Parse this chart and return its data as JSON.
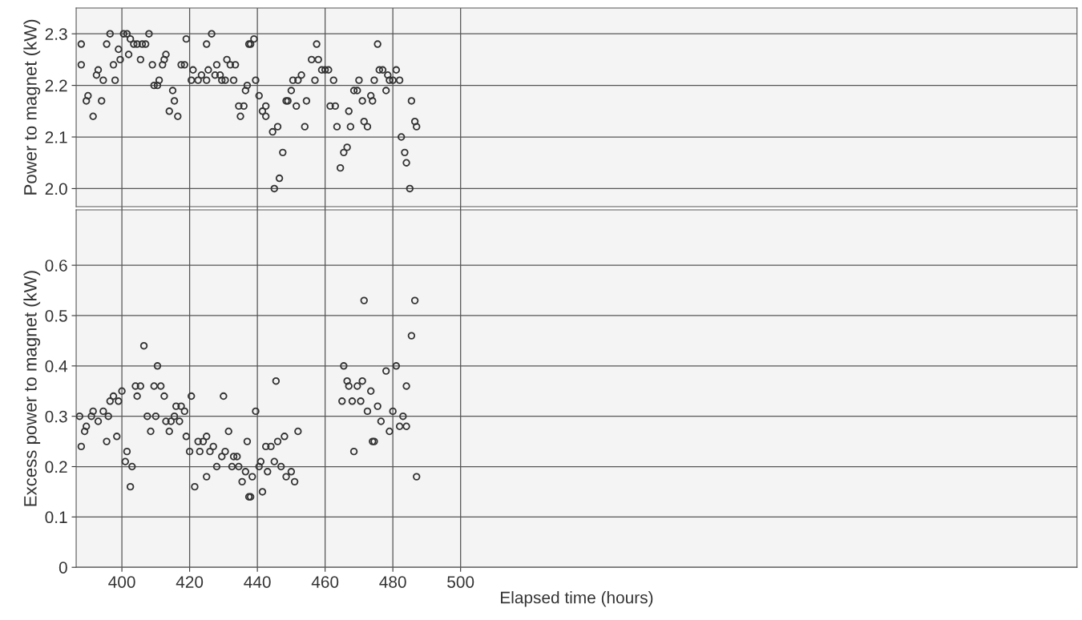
{
  "chart_data": [
    {
      "type": "scatter",
      "ylabel": "Power to magnet (kW)",
      "xlim": [
        386.5,
        682
      ],
      "xticks": [
        400,
        420,
        440,
        460,
        480,
        500
      ],
      "ylim": [
        1.965,
        2.35
      ],
      "yticks": [
        {
          "value": 2.0,
          "label": "2.0"
        },
        2.1,
        2.2,
        2.3
      ],
      "tick_labels": "y",
      "grid": true,
      "marker": "circle",
      "color": "#333333",
      "x": [
        388,
        388,
        390,
        389.5,
        391.5,
        393,
        392.5,
        394.5,
        394,
        395.5,
        396.5,
        397.5,
        398,
        399,
        399.5,
        400.5,
        401.5,
        402,
        402.5,
        403.5,
        404.5,
        406,
        407,
        405.5,
        408,
        409,
        409.5,
        410.5,
        411,
        412,
        412.5,
        413,
        415,
        415.5,
        414,
        416.5,
        417.5,
        418.5,
        419,
        421,
        420.5,
        422.5,
        423.5,
        425,
        425,
        425.5,
        426.5,
        427.5,
        428,
        429,
        429.5,
        430.5,
        431,
        432,
        433,
        433.5,
        434.5,
        436,
        435,
        436.5,
        437,
        437.5,
        439,
        438,
        439.5,
        440.5,
        442.5,
        441.5,
        442.5,
        446,
        444.5,
        447.5,
        446.5,
        445,
        448.5,
        449,
        450,
        450.5,
        451.5,
        452,
        453,
        454,
        454.5,
        456,
        457,
        457.5,
        458,
        459,
        460,
        461,
        462.5,
        461.5,
        463,
        463.5,
        465.5,
        466.5,
        464.5,
        467,
        467.5,
        468.5,
        469.5,
        470,
        471,
        471.5,
        472.5,
        473.5,
        474,
        474.5,
        475.5,
        476,
        477,
        478,
        478.5,
        479,
        480,
        481,
        482,
        482.5,
        483.5,
        484,
        485,
        485.5,
        486.5,
        487
      ],
      "values": [
        2.28,
        2.24,
        2.18,
        2.17,
        2.14,
        2.23,
        2.22,
        2.21,
        2.17,
        2.28,
        2.3,
        2.24,
        2.21,
        2.27,
        2.25,
        2.3,
        2.3,
        2.26,
        2.29,
        2.28,
        2.28,
        2.28,
        2.28,
        2.25,
        2.3,
        2.24,
        2.2,
        2.2,
        2.21,
        2.24,
        2.25,
        2.26,
        2.19,
        2.17,
        2.15,
        2.14,
        2.24,
        2.24,
        2.29,
        2.23,
        2.21,
        2.21,
        2.22,
        2.21,
        2.28,
        2.23,
        2.3,
        2.22,
        2.24,
        2.22,
        2.21,
        2.21,
        2.25,
        2.24,
        2.21,
        2.24,
        2.16,
        2.16,
        2.14,
        2.19,
        2.2,
        2.28,
        2.29,
        2.28,
        2.21,
        2.18,
        2.16,
        2.15,
        2.14,
        2.12,
        2.11,
        2.07,
        2.02,
        2.0,
        2.17,
        2.17,
        2.19,
        2.21,
        2.16,
        2.21,
        2.22,
        2.12,
        2.17,
        2.25,
        2.21,
        2.28,
        2.25,
        2.23,
        2.23,
        2.23,
        2.21,
        2.16,
        2.16,
        2.12,
        2.07,
        2.08,
        2.04,
        2.15,
        2.12,
        2.19,
        2.19,
        2.21,
        2.17,
        2.13,
        2.12,
        2.18,
        2.17,
        2.21,
        2.28,
        2.23,
        2.23,
        2.19,
        2.22,
        2.21,
        2.21,
        2.23,
        2.21,
        2.1,
        2.07,
        2.05,
        2.0,
        2.17,
        2.13,
        2.12
      ]
    },
    {
      "type": "scatter",
      "ylabel": "Excess power to magnet (kW)",
      "xlabel": "Elapsed time (hours)",
      "xlim": [
        386.5,
        682
      ],
      "xticks": [
        400,
        420,
        440,
        460,
        480,
        500
      ],
      "ylim": [
        0,
        0.71
      ],
      "yticks": [
        0,
        0.1,
        0.2,
        0.3,
        0.4,
        0.5,
        0.6
      ],
      "grid": true,
      "marker": "circle",
      "color": "#333333",
      "x": [
        406.5,
        410.5,
        387.5,
        388,
        389.5,
        389,
        391,
        391.5,
        393,
        394.5,
        396,
        395.5,
        396.5,
        397.5,
        399,
        398.5,
        400,
        401.5,
        401,
        403,
        402.5,
        404,
        405.5,
        404.5,
        407.5,
        408.5,
        409.5,
        410,
        411.5,
        412.5,
        413,
        414,
        414.5,
        415.5,
        416,
        417,
        417.5,
        418.5,
        419,
        420,
        420.5,
        421.5,
        422.5,
        423,
        424,
        425,
        426,
        427,
        425,
        428,
        429.5,
        430,
        430.5,
        431.5,
        432.5,
        433,
        434,
        434.5,
        436.5,
        435.5,
        437,
        437.5,
        471.5,
        486.5,
        485.5,
        465.5,
        478,
        481,
        445.5,
        466.5,
        471,
        467,
        469.5,
        473.5,
        484,
        465,
        468,
        470.5,
        475.5,
        472.5,
        480,
        483,
        476.5,
        482,
        484,
        479,
        452,
        474.5,
        474,
        468.5,
        439.5,
        448,
        446,
        442.5,
        444,
        441,
        445,
        447,
        440.5,
        443,
        450,
        448.5,
        438.5,
        451,
        441.5,
        487,
        438
      ],
      "values": [
        0.44,
        0.4,
        0.3,
        0.24,
        0.28,
        0.27,
        0.3,
        0.31,
        0.29,
        0.31,
        0.3,
        0.25,
        0.33,
        0.34,
        0.33,
        0.26,
        0.35,
        0.23,
        0.21,
        0.2,
        0.16,
        0.36,
        0.36,
        0.34,
        0.3,
        0.27,
        0.36,
        0.3,
        0.36,
        0.34,
        0.29,
        0.27,
        0.29,
        0.3,
        0.32,
        0.29,
        0.32,
        0.31,
        0.26,
        0.23,
        0.34,
        0.16,
        0.25,
        0.23,
        0.25,
        0.26,
        0.23,
        0.24,
        0.18,
        0.2,
        0.22,
        0.34,
        0.23,
        0.27,
        0.2,
        0.22,
        0.22,
        0.2,
        0.19,
        0.17,
        0.25,
        0.14,
        0.53,
        0.53,
        0.46,
        0.4,
        0.39,
        0.4,
        0.37,
        0.37,
        0.37,
        0.36,
        0.36,
        0.35,
        0.36,
        0.33,
        0.33,
        0.33,
        0.32,
        0.31,
        0.31,
        0.3,
        0.29,
        0.28,
        0.28,
        0.27,
        0.27,
        0.25,
        0.25,
        0.23,
        0.31,
        0.26,
        0.25,
        0.24,
        0.24,
        0.21,
        0.21,
        0.2,
        0.2,
        0.19,
        0.19,
        0.18,
        0.18,
        0.17,
        0.15,
        0.18,
        0.14
      ]
    }
  ]
}
